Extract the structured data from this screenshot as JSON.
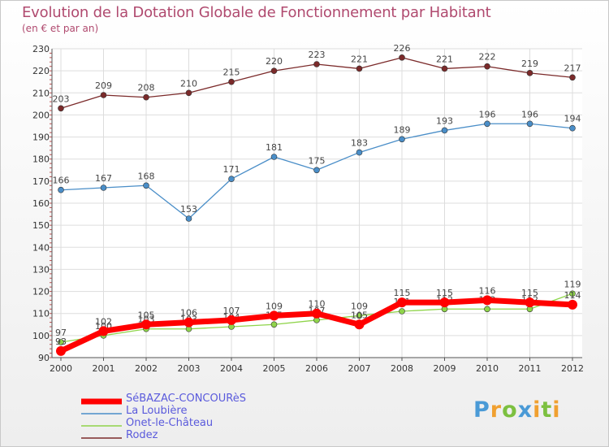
{
  "header": {
    "title": "Evolution de la Dotation Globale de Fonctionnement par Habitant",
    "subtitle": "(en € et par an)"
  },
  "brand": {
    "text": "Proxiti"
  },
  "colors": {
    "title": "#b04a6f",
    "legend_text": "#5a5adc",
    "grid": "#dddddd"
  },
  "chart_data": {
    "type": "line",
    "title": "Evolution de la Dotation Globale de Fonctionnement par Habitant",
    "subtitle": "(en € et par an)",
    "xlabel": "",
    "ylabel": "",
    "ylim": [
      90,
      230
    ],
    "yticks": [
      90,
      100,
      110,
      120,
      130,
      140,
      150,
      160,
      170,
      180,
      190,
      200,
      210,
      220,
      230
    ],
    "categories": [
      "2000",
      "2001",
      "2002",
      "2003",
      "2004",
      "2005",
      "2006",
      "2007",
      "2008",
      "2009",
      "2010",
      "2011",
      "2012"
    ],
    "grid": true,
    "legend_position": "bottom-left",
    "series": [
      {
        "name": "Rodez",
        "color": "#7b2a2a",
        "values": [
          203,
          209,
          208,
          210,
          215,
          220,
          223,
          221,
          226,
          221,
          222,
          219,
          217
        ],
        "labels": [
          "203",
          "209",
          "208",
          "210",
          "215",
          "220",
          "223",
          "221",
          "226",
          "221",
          "222",
          "219",
          "217"
        ]
      },
      {
        "name": "La Loubière",
        "color": "#4a8ec8",
        "values": [
          166,
          167,
          168,
          153,
          171,
          181,
          175,
          183,
          189,
          193,
          196,
          196,
          194
        ],
        "labels": [
          "166",
          "167",
          "168",
          "153",
          "171",
          "181",
          "175",
          "183",
          "189",
          "193",
          "196",
          "196",
          "194"
        ]
      },
      {
        "name": "Onet-le-Château",
        "color": "#8fd44a",
        "values": [
          97,
          100,
          103,
          103,
          104,
          105,
          107,
          109,
          111,
          112,
          112,
          112,
          119
        ],
        "labels": [
          "97",
          "100",
          "103",
          "103",
          "104",
          "105",
          "107",
          "109",
          "111",
          "112",
          "112",
          "112",
          "119"
        ]
      },
      {
        "name": "SéBAZAC-CONCOURèS",
        "color": "#ff0000",
        "values": [
          93,
          102,
          105,
          106,
          107,
          109,
          110,
          105,
          115,
          115,
          116,
          115,
          114
        ],
        "labels": [
          "93",
          "102",
          "105",
          "106",
          "107",
          "109",
          "110",
          "105",
          "115",
          "115",
          "116",
          "115",
          "114"
        ]
      }
    ],
    "legend": [
      "SéBAZAC-CONCOURèS",
      "La Loubière",
      "Onet-le-Château",
      "Rodez"
    ]
  }
}
